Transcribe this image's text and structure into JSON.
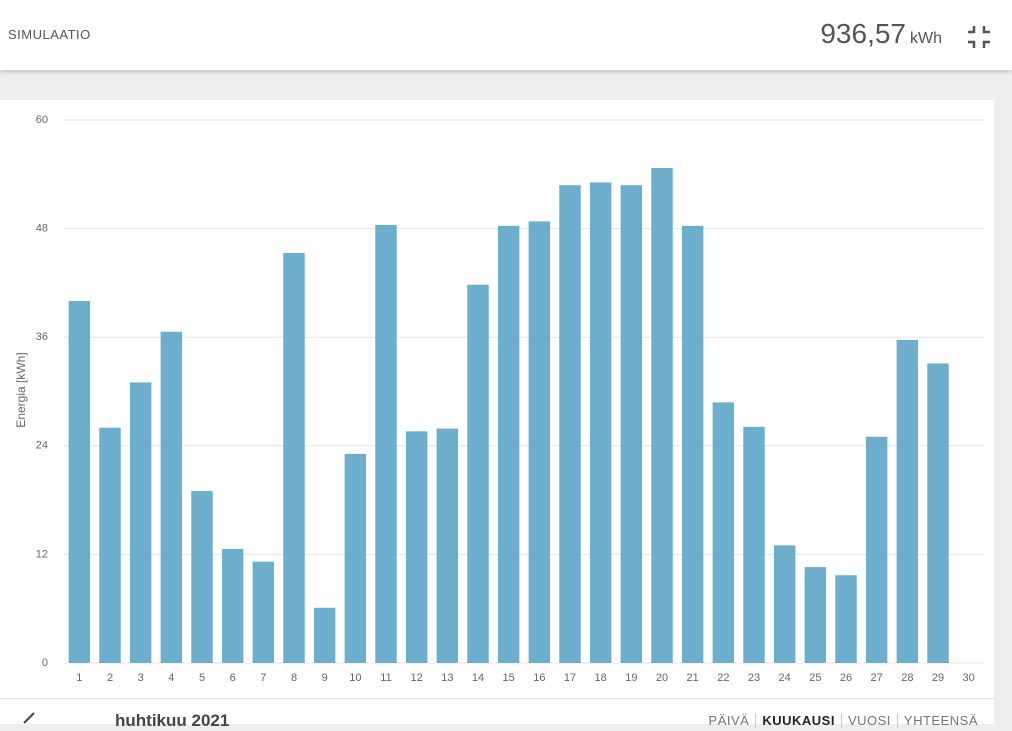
{
  "header": {
    "title": "SIMULAATIO",
    "total": "936,57",
    "unit": "kWh"
  },
  "chart_data": {
    "type": "bar",
    "y_label": "Energia [kWh]",
    "categories": [
      "1",
      "2",
      "3",
      "4",
      "5",
      "6",
      "7",
      "8",
      "9",
      "10",
      "11",
      "12",
      "13",
      "14",
      "15",
      "16",
      "17",
      "18",
      "19",
      "20",
      "21",
      "22",
      "23",
      "24",
      "25",
      "26",
      "27",
      "28",
      "29",
      "30"
    ],
    "values": [
      40.0,
      26.0,
      31.0,
      36.6,
      19.0,
      12.6,
      11.2,
      45.3,
      6.1,
      23.1,
      48.4,
      25.6,
      25.9,
      41.8,
      48.3,
      48.8,
      52.8,
      53.1,
      52.8,
      54.7,
      48.3,
      28.8,
      26.1,
      13.0,
      10.6,
      9.7,
      25.0,
      35.7,
      33.1,
      null
    ],
    "color": "#6eaecd",
    "ylim": [
      0,
      60
    ],
    "yticks": [
      0,
      12,
      24,
      36,
      48,
      60
    ],
    "grid": true
  },
  "footer": {
    "month": "huhtikuu 2021",
    "tabs": [
      "PÄIVÄ",
      "KUUKAUSI",
      "VUOSI",
      "YHTEENSÄ"
    ],
    "active": "KUUKAUSI"
  }
}
